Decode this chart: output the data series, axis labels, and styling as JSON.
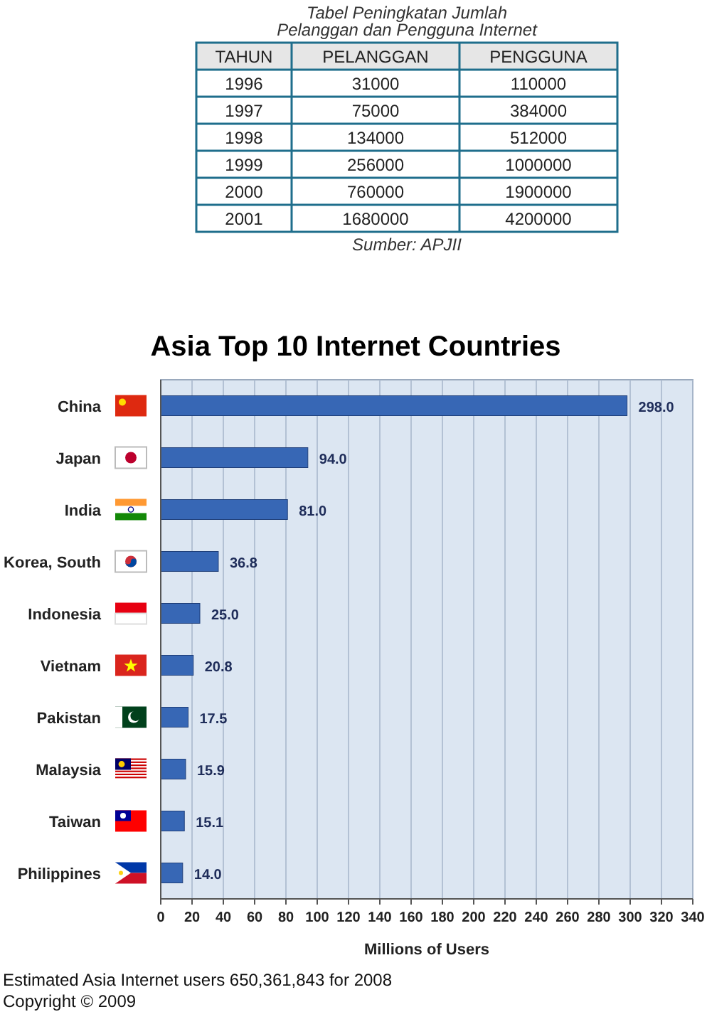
{
  "chart_data": [
    {
      "type": "heatmap",
      "title": "Tabel Peningkatan Jumlah",
      "subtitle": "Pelanggan dan Pengguna Internet",
      "ylabel": "TAHUN",
      "categories": [
        "PELANGGAN",
        "PENGGUNA"
      ],
      "y_categories": [
        "1996",
        "1997",
        "1998",
        "1999",
        "2000",
        "2001"
      ],
      "cells": [
        [
          31000,
          110000
        ],
        [
          75000,
          384000
        ],
        [
          134000,
          512000
        ],
        [
          256000,
          1000000
        ],
        [
          760000,
          1900000
        ],
        [
          1680000,
          4200000
        ]
      ],
      "data_labels": true,
      "annotations": [
        "Sumber: APJII"
      ]
    },
    {
      "type": "bar",
      "orientation": "horizontal",
      "title": "Asia Top 10 Internet Countries",
      "xlabel": "Millions of Users",
      "categories": [
        "China",
        "Japan",
        "India",
        "Korea, South",
        "Indonesia",
        "Vietnam",
        "Pakistan",
        "Malaysia",
        "Taiwan",
        "Philippines"
      ],
      "values": [
        298.0,
        94.0,
        81.0,
        36.8,
        25.0,
        20.8,
        17.5,
        15.9,
        15.1,
        14.0
      ],
      "value_labels": [
        "298.0",
        "94.0",
        "81.0",
        "36.8",
        "25.0",
        "20.8",
        "17.5",
        "15.9",
        "15.1",
        "14.0"
      ],
      "color": "#3767b5",
      "xlim": [
        0,
        340
      ],
      "xticks": [
        0,
        20,
        40,
        60,
        80,
        100,
        120,
        140,
        160,
        180,
        200,
        220,
        240,
        260,
        280,
        300,
        320,
        340
      ],
      "grid": "x",
      "annotations": [
        "Estimated Asia Internet users 650,361,843 for 2008",
        "Copyright © 2009"
      ]
    }
  ]
}
